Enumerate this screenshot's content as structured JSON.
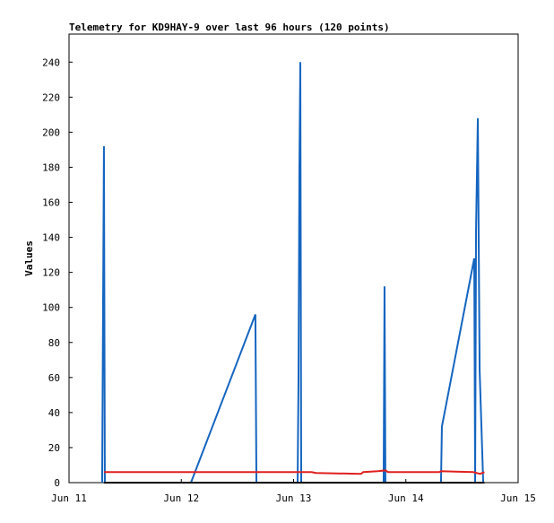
{
  "chart_data": {
    "type": "line",
    "title": "Telemetry for KD9HAY-9 over last 96 hours (120 points)",
    "y_label": "Values",
    "xlim": [
      0,
      4
    ],
    "ylim": [
      0,
      256
    ],
    "xticks": [
      {
        "value": 0,
        "label": "Jun 11"
      },
      {
        "value": 1,
        "label": "Jun 12"
      },
      {
        "value": 2,
        "label": "Jun 13"
      },
      {
        "value": 3,
        "label": "Jun 14"
      },
      {
        "value": 4,
        "label": "Jun 15"
      }
    ],
    "yticks": [
      0,
      20,
      40,
      60,
      80,
      100,
      120,
      140,
      160,
      180,
      200,
      220,
      240
    ],
    "series": [
      {
        "color": "#1565c0",
        "x": [
          0.295,
          0.303,
          0.311,
          0.319,
          1.086,
          1.66,
          1.669,
          2.036,
          2.044,
          2.052,
          2.06,
          2.068,
          2.802,
          2.81,
          2.818,
          3.313,
          3.321,
          3.609,
          3.617,
          3.625,
          3.641,
          3.657,
          3.673,
          3.689
        ],
        "values": [
          0,
          97,
          192,
          0,
          0,
          96,
          0,
          0,
          60,
          180,
          240,
          0,
          0,
          112,
          0,
          0,
          32,
          128,
          0,
          144,
          208,
          64,
          32,
          0
        ]
      },
      {
        "color": "#e02020",
        "x": [
          0.311,
          2.16,
          2.2,
          2.6,
          2.62,
          2.75,
          2.82,
          2.84,
          3.3,
          3.31,
          3.6,
          3.66,
          3.7
        ],
        "values": [
          6,
          6,
          5.5,
          5,
          6,
          6.5,
          7,
          6,
          6,
          6.5,
          6,
          5,
          6
        ]
      },
      {
        "color": "#000000",
        "x": [
          0.311,
          3.7
        ],
        "values": [
          0,
          0
        ]
      }
    ]
  }
}
